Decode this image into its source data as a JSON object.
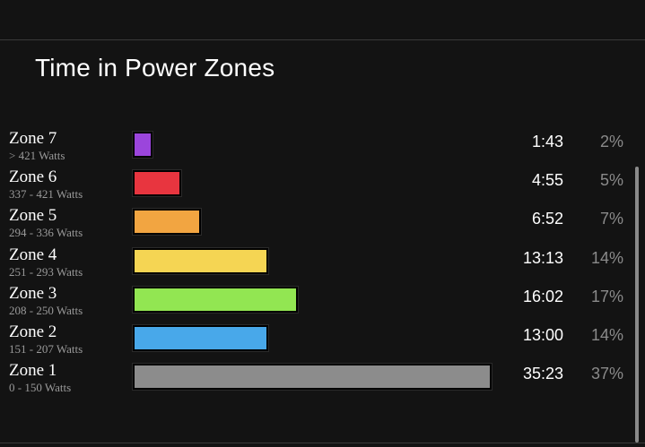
{
  "title": "Time in Power Zones",
  "zones": [
    {
      "name": "Zone 7",
      "range": "> 421 Watts",
      "time": "1:43",
      "percent": "2%",
      "fraction": 0.02,
      "color": "#9b45dc"
    },
    {
      "name": "Zone 6",
      "range": "337 - 421 Watts",
      "time": "4:55",
      "percent": "5%",
      "fraction": 0.05,
      "color": "#e8353f"
    },
    {
      "name": "Zone 5",
      "range": "294 - 336 Watts",
      "time": "6:52",
      "percent": "7%",
      "fraction": 0.07,
      "color": "#f2a541"
    },
    {
      "name": "Zone 4",
      "range": "251 - 293 Watts",
      "time": "13:13",
      "percent": "14%",
      "fraction": 0.14,
      "color": "#f5d553"
    },
    {
      "name": "Zone 3",
      "range": "208 - 250 Watts",
      "time": "16:02",
      "percent": "17%",
      "fraction": 0.17,
      "color": "#92e652"
    },
    {
      "name": "Zone 2",
      "range": "151 - 207 Watts",
      "time": "13:00",
      "percent": "14%",
      "fraction": 0.14,
      "color": "#48a8ea"
    },
    {
      "name": "Zone 1",
      "range": "0 - 150 Watts",
      "time": "35:23",
      "percent": "37%",
      "fraction": 0.37,
      "color": "#8c8c8c"
    }
  ]
}
